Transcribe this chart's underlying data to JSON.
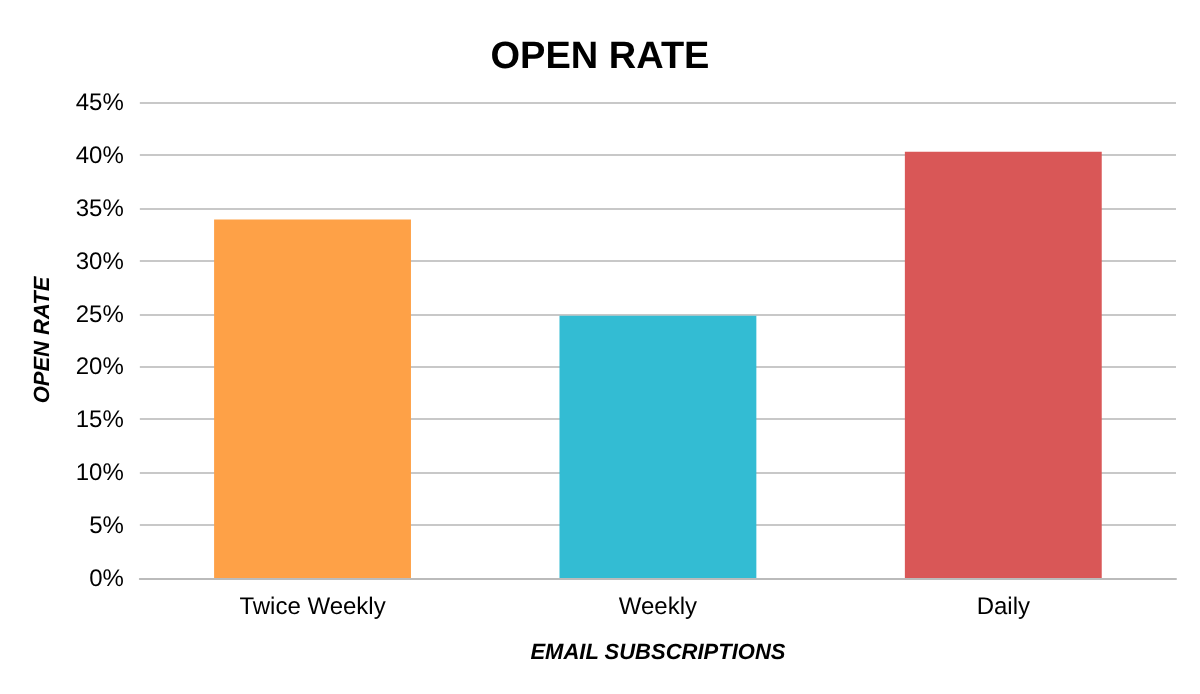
{
  "chart_data": {
    "type": "bar",
    "title": "OPEN RATE",
    "xlabel": "EMAIL SUBSCRIPTIONS",
    "ylabel": "OPEN RATE",
    "categories": [
      "Twice Weekly",
      "Weekly",
      "Daily"
    ],
    "values": [
      33.9,
      24.8,
      40.3
    ],
    "colors": [
      "#fea147",
      "#33bcd3",
      "#d95757"
    ],
    "ylim": [
      0,
      45
    ],
    "yticks": [
      {
        "value": 0,
        "label": "0%"
      },
      {
        "value": 5,
        "label": "5%"
      },
      {
        "value": 10,
        "label": "10%"
      },
      {
        "value": 15,
        "label": "15%"
      },
      {
        "value": 20,
        "label": "20%"
      },
      {
        "value": 25,
        "label": "25%"
      },
      {
        "value": 30,
        "label": "30%"
      },
      {
        "value": 35,
        "label": "35%"
      },
      {
        "value": 40,
        "label": "40%"
      },
      {
        "value": 45,
        "label": "45%"
      }
    ],
    "grid": "y"
  }
}
